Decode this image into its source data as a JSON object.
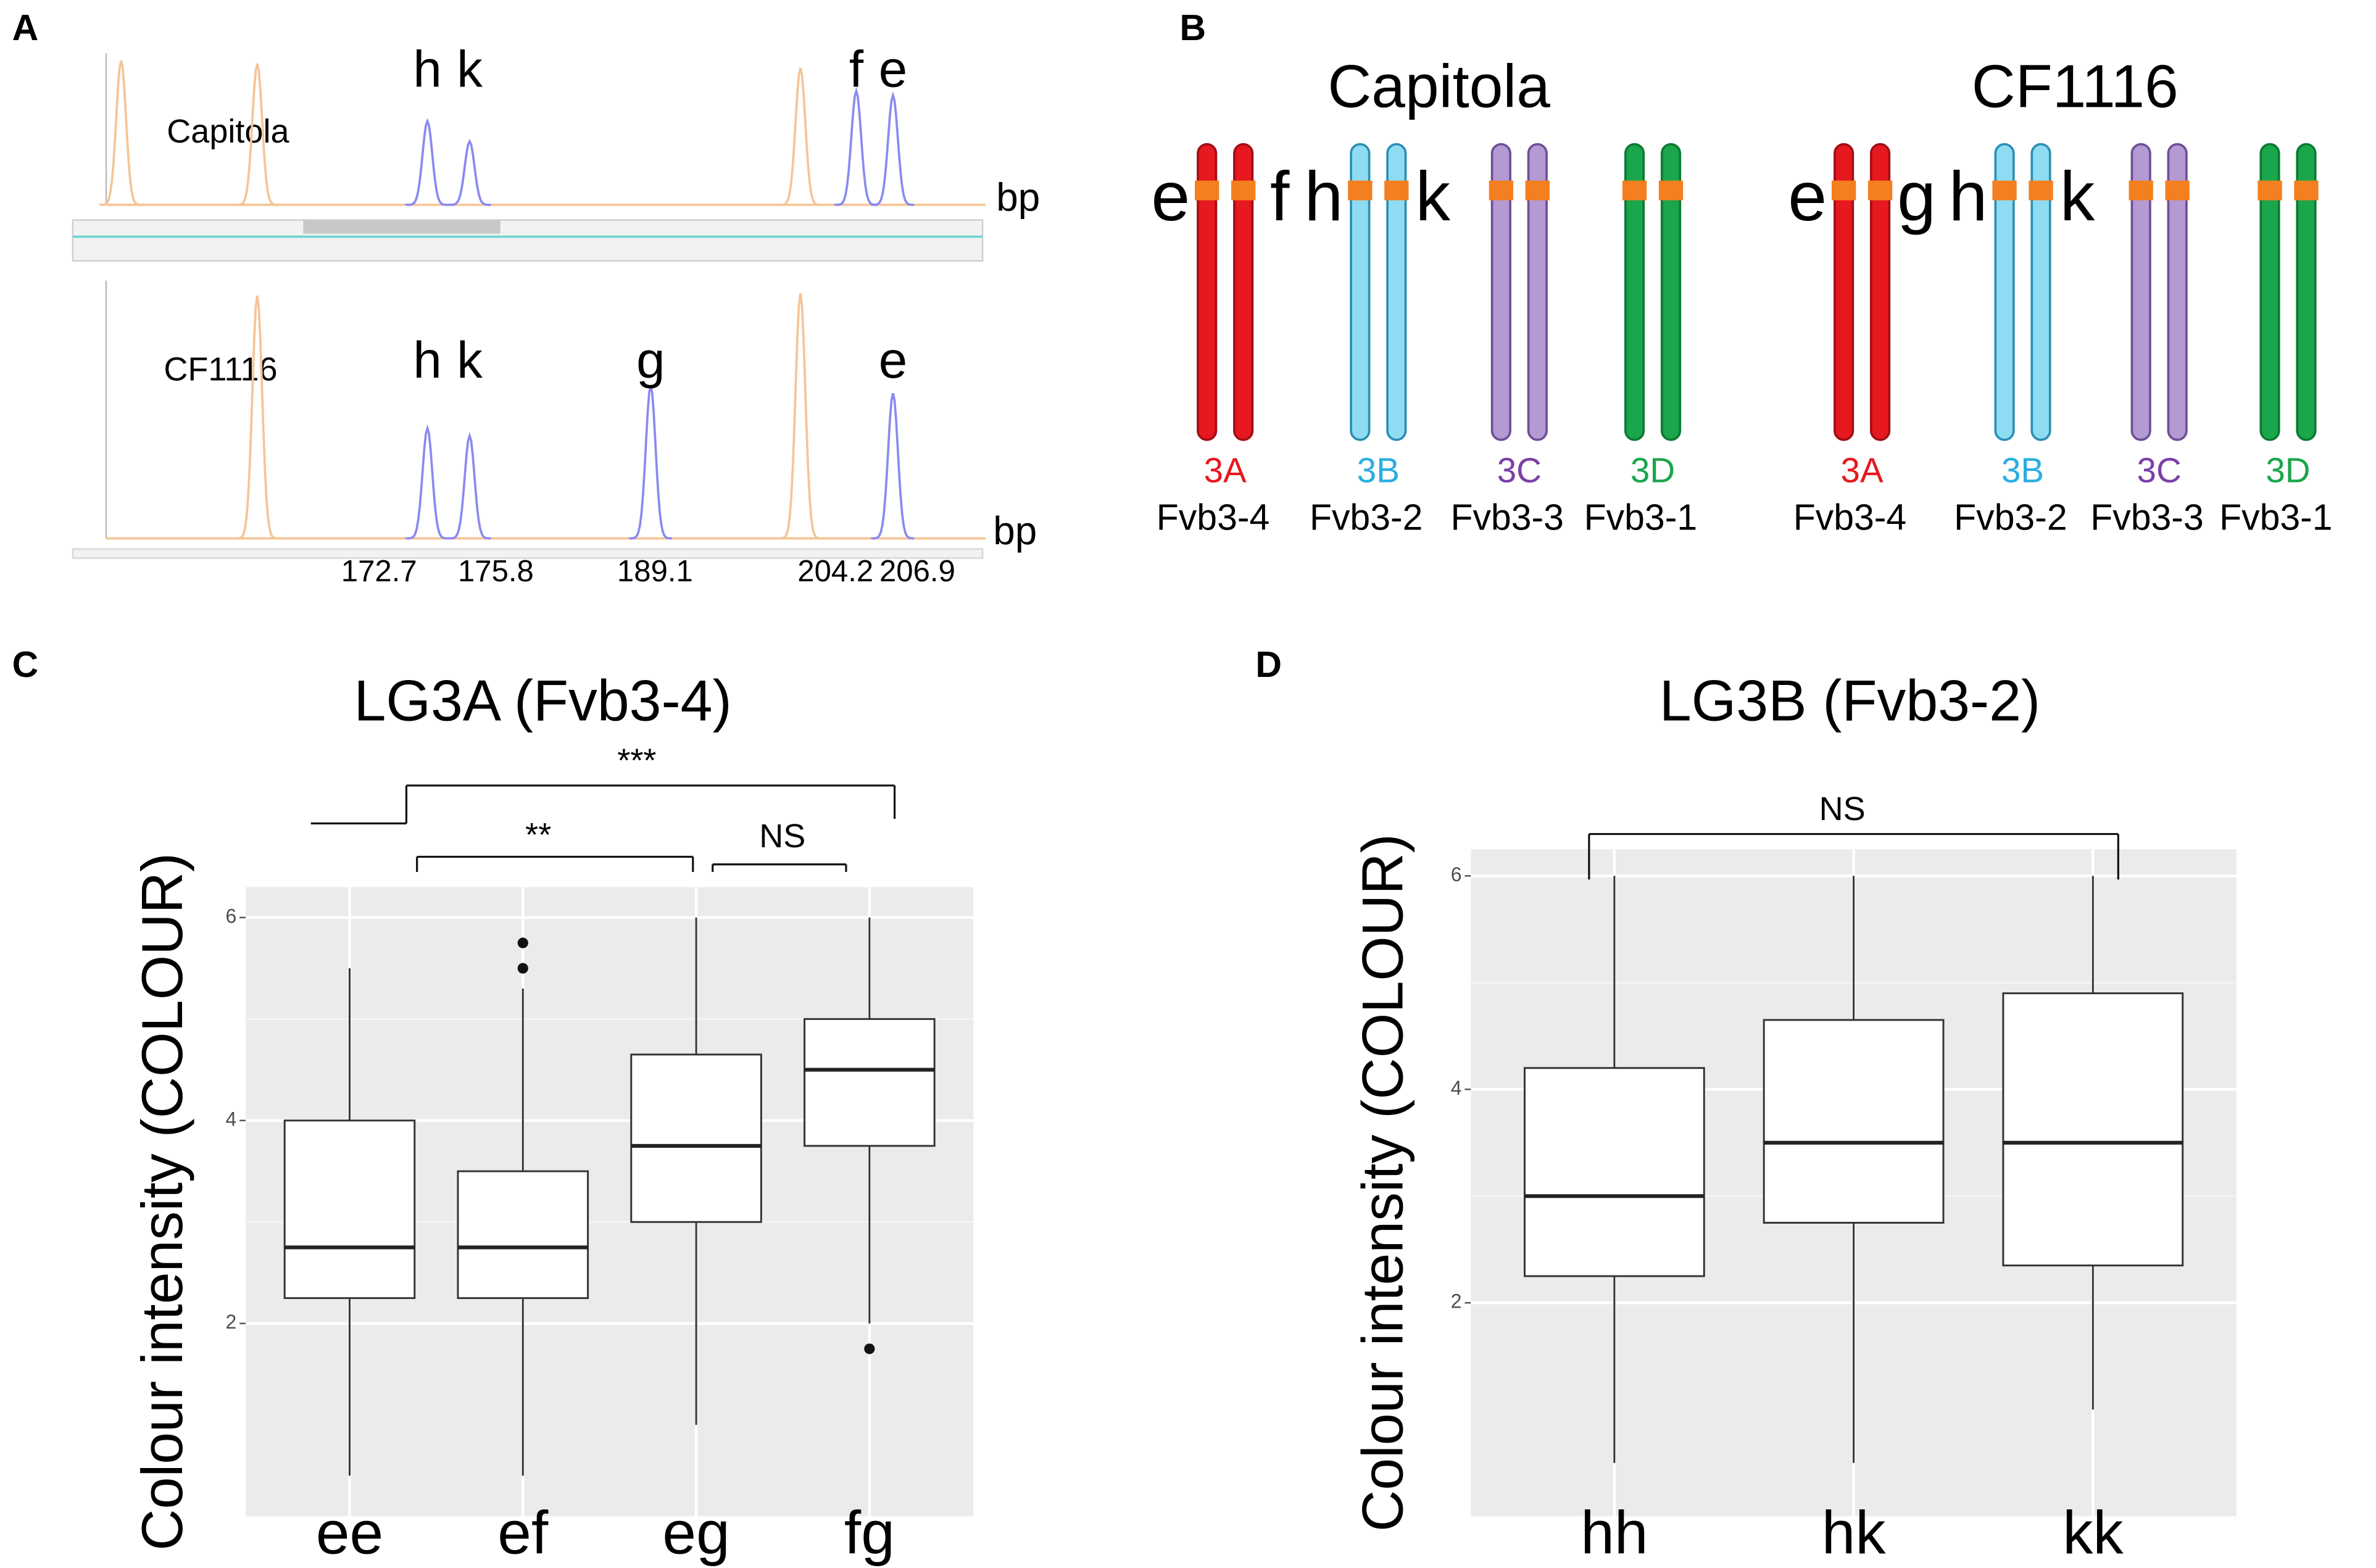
{
  "panel_labels": [
    "A",
    "B",
    "C",
    "D"
  ],
  "electropherogram": {
    "unit": "bp",
    "xlim": [
      149.1,
      213.7
    ],
    "peak_color": "#8a8af0",
    "ladder_color": "#f5c596",
    "traces": [
      {
        "name": "Capitola",
        "peaks": [
          {
            "label": "h",
            "bp": 172.7,
            "height": 0.58
          },
          {
            "label": "k",
            "bp": 175.8,
            "height": 0.44
          },
          {
            "label": "f",
            "bp": 204.2,
            "height": 0.79
          },
          {
            "label": "e",
            "bp": 206.9,
            "height": 0.76
          }
        ],
        "ladder": [
          {
            "bp": 150.2,
            "height": 1.0
          },
          {
            "bp": 160.2,
            "height": 0.98
          },
          {
            "bp": 200.1,
            "height": 0.95
          }
        ]
      },
      {
        "name": "CF1116",
        "peaks": [
          {
            "label": "h",
            "bp": 172.7,
            "height": 0.44
          },
          {
            "label": "k",
            "bp": 175.8,
            "height": 0.41
          },
          {
            "label": "g",
            "bp": 189.1,
            "height": 0.61
          },
          {
            "label": "e",
            "bp": 206.9,
            "height": 0.58
          }
        ],
        "ladder": [
          {
            "bp": 160.2,
            "height": 0.97
          },
          {
            "bp": 200.1,
            "height": 0.98
          }
        ]
      }
    ],
    "bp_labels": [
      172.7,
      175.8,
      189.1,
      204.2,
      206.9
    ]
  },
  "chromosomes": {
    "homeologs": [
      {
        "group": "3A",
        "name": "Fvb3-4",
        "color": "#e5191f",
        "outline": "#a30f14",
        "label_color": "#e5191f"
      },
      {
        "group": "3B",
        "name": "Fvb3-2",
        "color": "#8fdcf2",
        "outline": "#2a8fb3",
        "label_color": "#29aee0"
      },
      {
        "group": "3C",
        "name": "Fvb3-3",
        "color": "#b39ad3",
        "outline": "#6d4f97",
        "label_color": "#7a3fa8"
      },
      {
        "group": "3D",
        "name": "Fvb3-1",
        "color": "#1aa64a",
        "outline": "#0d7a33",
        "label_color": "#1aa64a"
      }
    ],
    "band_color": "#f47f20",
    "genotypes": [
      {
        "title": "Capitola",
        "alleles": [
          [
            "e",
            "f"
          ],
          [
            "h",
            "k"
          ],
          [],
          []
        ]
      },
      {
        "title": "CF1116",
        "alleles": [
          [
            "e",
            "g"
          ],
          [
            "h",
            "k"
          ],
          [],
          []
        ]
      }
    ]
  },
  "chart_data": [
    {
      "type": "box",
      "title": "LG3A (Fvb3-4)",
      "y_label": "Colour intensity (COLOUR)",
      "categories": [
        "ee",
        "ef",
        "eg",
        "fg"
      ],
      "min": [
        0.5,
        0.5,
        1.0,
        2.0
      ],
      "q1": [
        2.25,
        2.25,
        3.0,
        3.75
      ],
      "median": [
        2.75,
        2.75,
        3.75,
        4.5
      ],
      "q3": [
        4.0,
        3.5,
        4.65,
        5.0
      ],
      "max": [
        5.5,
        5.3,
        6.0,
        6.0
      ],
      "outliers": [
        [],
        [
          5.5,
          5.75
        ],
        [],
        [
          1.75
        ]
      ],
      "ylim": [
        0.1,
        6.3
      ],
      "yticks": [
        2,
        4,
        6
      ],
      "grid": true,
      "annotations": [
        "***",
        "**",
        "NS"
      ]
    },
    {
      "type": "box",
      "title": "LG3B (Fvb3-2)",
      "y_label": "Colour intensity (COLOUR)",
      "categories": [
        "hh",
        "hk",
        "kk"
      ],
      "min": [
        0.5,
        0.5,
        1.0
      ],
      "q1": [
        2.25,
        2.75,
        2.35
      ],
      "median": [
        3.0,
        3.5,
        3.5
      ],
      "q3": [
        4.2,
        4.65,
        4.9
      ],
      "max": [
        6.0,
        6.0,
        6.0
      ],
      "outliers": [
        [],
        [],
        []
      ],
      "ylim": [
        0.0,
        6.25
      ],
      "yticks": [
        2,
        4,
        6
      ],
      "grid": true,
      "annotations": [
        "NS"
      ]
    }
  ]
}
